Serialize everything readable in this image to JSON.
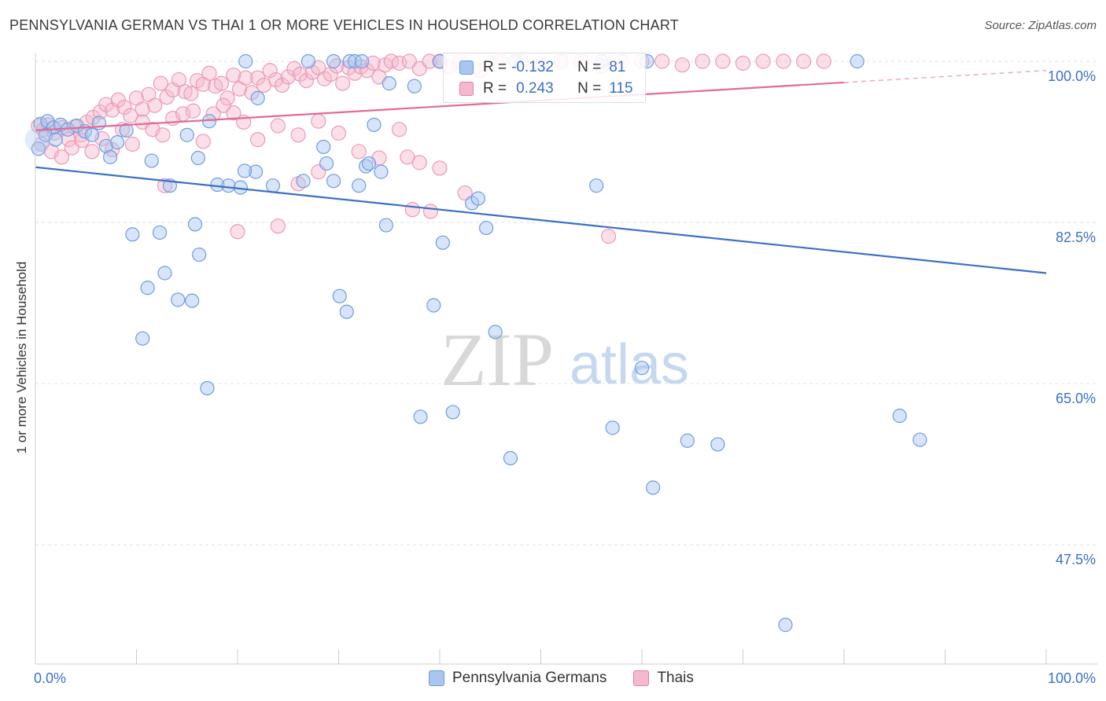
{
  "title": "PENNSYLVANIA GERMAN VS THAI 1 OR MORE VEHICLES IN HOUSEHOLD CORRELATION CHART",
  "source": "Source: ZipAtlas.com",
  "watermark": {
    "zip": "ZIP",
    "atlas": "atlas"
  },
  "legend": {
    "r_label": "R =",
    "n_label": "N =",
    "rows": [
      {
        "r": "-0.132",
        "n": "81",
        "fill": "#a8c6f0",
        "stroke": "#6a9ae0"
      },
      {
        "r": "0.243",
        "n": "115",
        "fill": "#f5b8cc",
        "stroke": "#e87fa2"
      }
    ]
  },
  "bottom_legend": [
    "Pennsylvania Germans",
    "Thais"
  ],
  "chart_data": {
    "type": "scatter",
    "title": "PENNSYLVANIA GERMAN VS THAI 1 OR MORE VEHICLES IN HOUSEHOLD CORRELATION CHART",
    "xlabel": "",
    "ylabel": "1 or more Vehicles in Household",
    "xlim": [
      0,
      100
    ],
    "ylim": [
      35,
      102
    ],
    "x_tick_labels": [
      {
        "value": 0,
        "label": "0.0%"
      },
      {
        "value": 100,
        "label": "100.0%"
      }
    ],
    "y_tick_labels": [
      {
        "value": 100,
        "label": "100.0%"
      },
      {
        "value": 82.5,
        "label": "82.5%"
      },
      {
        "value": 65,
        "label": "65.0%"
      },
      {
        "value": 47.5,
        "label": "47.5%"
      }
    ],
    "grid": true,
    "colors": {
      "blue": "#3b6fc9",
      "pink": "#e46a94",
      "blue_fill": "#a8c6f0",
      "pink_fill": "#f5b8cc"
    },
    "series": [
      {
        "name": "Pennsylvania Germans",
        "color": "#3b6fc9",
        "trend": {
          "x": [
            0,
            100
          ],
          "y": [
            88.5,
            77.0
          ],
          "dashed_from": null
        },
        "points": [
          [
            0.5,
            93.2
          ],
          [
            1.2,
            93.5
          ],
          [
            1.8,
            92.8
          ],
          [
            2.5,
            93.1
          ],
          [
            3.2,
            92.6
          ],
          [
            4.1,
            93.0
          ],
          [
            4.9,
            92.4
          ],
          [
            5.6,
            92.0
          ],
          [
            6.3,
            93.3
          ],
          [
            7.0,
            90.8
          ],
          [
            7.4,
            89.6
          ],
          [
            8.1,
            91.2
          ],
          [
            9.0,
            92.5
          ],
          [
            1.0,
            92.0
          ],
          [
            0.3,
            90.5
          ],
          [
            2.0,
            91.5
          ],
          [
            11.5,
            89.2
          ],
          [
            13.3,
            86.5
          ],
          [
            15.0,
            92.0
          ],
          [
            16.1,
            89.5
          ],
          [
            17.2,
            93.5
          ],
          [
            15.8,
            82.3
          ],
          [
            9.6,
            81.2
          ],
          [
            12.3,
            81.4
          ],
          [
            12.8,
            77.0
          ],
          [
            11.1,
            75.4
          ],
          [
            14.1,
            74.1
          ],
          [
            10.6,
            69.9
          ],
          [
            15.5,
            74.0
          ],
          [
            16.2,
            79.0
          ],
          [
            17.0,
            64.5
          ],
          [
            18.0,
            86.6
          ],
          [
            19.1,
            86.5
          ],
          [
            20.3,
            86.3
          ],
          [
            22.0,
            96.0
          ],
          [
            23.5,
            86.5
          ],
          [
            21.8,
            88.0
          ],
          [
            20.7,
            88.1
          ],
          [
            26.5,
            87.0
          ],
          [
            28.5,
            90.7
          ],
          [
            28.8,
            88.9
          ],
          [
            29.5,
            87.0
          ],
          [
            30.1,
            74.5
          ],
          [
            30.8,
            72.8
          ],
          [
            32.0,
            86.5
          ],
          [
            32.7,
            88.6
          ],
          [
            33.0,
            88.9
          ],
          [
            33.5,
            93.1
          ],
          [
            34.2,
            88.0
          ],
          [
            34.7,
            82.2
          ],
          [
            20.8,
            100.0
          ],
          [
            27.0,
            100.0
          ],
          [
            29.5,
            100.0
          ],
          [
            31.1,
            100.0
          ],
          [
            31.6,
            100.0
          ],
          [
            32.3,
            100.0
          ],
          [
            40.0,
            100.0
          ],
          [
            47.5,
            100.0
          ],
          [
            56.0,
            100.0
          ],
          [
            60.5,
            100.0
          ],
          [
            81.3,
            100.0
          ],
          [
            35.0,
            97.6
          ],
          [
            37.5,
            97.3
          ],
          [
            38.1,
            61.4
          ],
          [
            39.4,
            73.5
          ],
          [
            40.3,
            80.3
          ],
          [
            41.3,
            61.9
          ],
          [
            43.2,
            84.6
          ],
          [
            43.8,
            85.1
          ],
          [
            44.6,
            81.9
          ],
          [
            47.0,
            56.9
          ],
          [
            57.1,
            60.2
          ],
          [
            61.1,
            53.7
          ],
          [
            64.5,
            58.8
          ],
          [
            67.5,
            58.4
          ],
          [
            74.2,
            38.8
          ],
          [
            85.5,
            61.5
          ],
          [
            87.5,
            58.9
          ],
          [
            45.5,
            70.6
          ],
          [
            55.5,
            86.5
          ],
          [
            60.0,
            66.7
          ]
        ]
      },
      {
        "name": "Thais",
        "color": "#e46a94",
        "trend": {
          "x": [
            0,
            100
          ],
          "y": [
            92.5,
            99.0
          ],
          "dashed_from": 80
        },
        "points": [
          [
            0.3,
            93.0
          ],
          [
            0.8,
            92.6
          ],
          [
            1.3,
            93.1
          ],
          [
            1.9,
            92.2
          ],
          [
            2.6,
            92.8
          ],
          [
            3.3,
            91.5
          ],
          [
            3.9,
            92.9
          ],
          [
            4.5,
            92.0
          ],
          [
            5.1,
            93.4
          ],
          [
            5.7,
            93.9
          ],
          [
            6.4,
            94.5
          ],
          [
            7.0,
            95.3
          ],
          [
            7.6,
            94.7
          ],
          [
            8.2,
            95.8
          ],
          [
            8.8,
            95.0
          ],
          [
            9.4,
            94.1
          ],
          [
            10.0,
            96.0
          ],
          [
            10.6,
            94.8
          ],
          [
            11.2,
            96.4
          ],
          [
            11.8,
            95.2
          ],
          [
            12.4,
            97.6
          ],
          [
            13.0,
            96.1
          ],
          [
            13.6,
            96.9
          ],
          [
            14.2,
            98.0
          ],
          [
            14.8,
            96.7
          ],
          [
            15.4,
            96.5
          ],
          [
            16.0,
            97.9
          ],
          [
            16.6,
            97.5
          ],
          [
            17.2,
            98.7
          ],
          [
            17.8,
            97.3
          ],
          [
            18.4,
            97.6
          ],
          [
            19.0,
            96.0
          ],
          [
            19.6,
            98.5
          ],
          [
            20.2,
            97.0
          ],
          [
            20.8,
            98.2
          ],
          [
            21.4,
            96.6
          ],
          [
            22.0,
            98.2
          ],
          [
            22.6,
            97.4
          ],
          [
            23.2,
            99.0
          ],
          [
            23.8,
            98.0
          ],
          [
            24.4,
            97.4
          ],
          [
            25.0,
            98.3
          ],
          [
            25.6,
            99.2
          ],
          [
            26.2,
            98.6
          ],
          [
            26.8,
            97.9
          ],
          [
            27.4,
            98.8
          ],
          [
            28.0,
            99.3
          ],
          [
            28.6,
            98.1
          ],
          [
            29.2,
            98.6
          ],
          [
            29.8,
            99.5
          ],
          [
            30.4,
            97.6
          ],
          [
            31.0,
            99.3
          ],
          [
            31.6,
            98.7
          ],
          [
            32.2,
            99.4
          ],
          [
            32.8,
            99.0
          ],
          [
            33.4,
            99.8
          ],
          [
            34.0,
            98.3
          ],
          [
            34.6,
            99.6
          ],
          [
            35.2,
            100.0
          ],
          [
            36.0,
            99.8
          ],
          [
            37.0,
            100.0
          ],
          [
            38.0,
            99.2
          ],
          [
            39.0,
            100.0
          ],
          [
            40.0,
            100.0
          ],
          [
            41.0,
            99.4
          ],
          [
            42.0,
            100.0
          ],
          [
            44.0,
            99.0
          ],
          [
            46.0,
            100.0
          ],
          [
            48.0,
            100.0
          ],
          [
            50.0,
            99.6
          ],
          [
            52.0,
            100.0
          ],
          [
            54.0,
            100.0
          ],
          [
            56.0,
            99.5
          ],
          [
            58.0,
            100.0
          ],
          [
            60.0,
            100.0
          ],
          [
            62.0,
            100.0
          ],
          [
            64.0,
            99.6
          ],
          [
            66.0,
            100.0
          ],
          [
            68.0,
            100.0
          ],
          [
            70.0,
            99.8
          ],
          [
            72.0,
            100.0
          ],
          [
            74.0,
            100.0
          ],
          [
            76.0,
            100.0
          ],
          [
            78.0,
            100.0
          ],
          [
            0.6,
            91.0
          ],
          [
            1.6,
            90.2
          ],
          [
            2.6,
            89.6
          ],
          [
            3.6,
            90.6
          ],
          [
            4.6,
            91.4
          ],
          [
            5.6,
            90.2
          ],
          [
            6.6,
            91.6
          ],
          [
            7.6,
            90.4
          ],
          [
            8.6,
            92.6
          ],
          [
            9.6,
            91.0
          ],
          [
            10.6,
            93.4
          ],
          [
            11.6,
            92.6
          ],
          [
            12.6,
            92.0
          ],
          [
            13.6,
            93.8
          ],
          [
            14.6,
            94.3
          ],
          [
            15.6,
            94.6
          ],
          [
            16.6,
            91.3
          ],
          [
            17.6,
            94.3
          ],
          [
            18.6,
            95.2
          ],
          [
            19.6,
            94.4
          ],
          [
            20.6,
            93.4
          ],
          [
            22.0,
            91.5
          ],
          [
            24.0,
            93.0
          ],
          [
            26.0,
            92.0
          ],
          [
            28.0,
            93.5
          ],
          [
            30.0,
            92.2
          ],
          [
            32.0,
            90.2
          ],
          [
            34.0,
            89.5
          ],
          [
            36.0,
            92.6
          ],
          [
            38.0,
            89.0
          ],
          [
            40.0,
            88.4
          ]
        ]
      }
    ],
    "extra_pink_outliers": [
      [
        12.8,
        86.5
      ],
      [
        20.0,
        81.5
      ],
      [
        24.0,
        82.1
      ],
      [
        26.0,
        86.7
      ],
      [
        28.0,
        88.0
      ],
      [
        37.3,
        83.9
      ],
      [
        56.7,
        81.0
      ],
      [
        36.8,
        89.6
      ],
      [
        39.1,
        83.7
      ],
      [
        42.5,
        85.7
      ]
    ]
  }
}
